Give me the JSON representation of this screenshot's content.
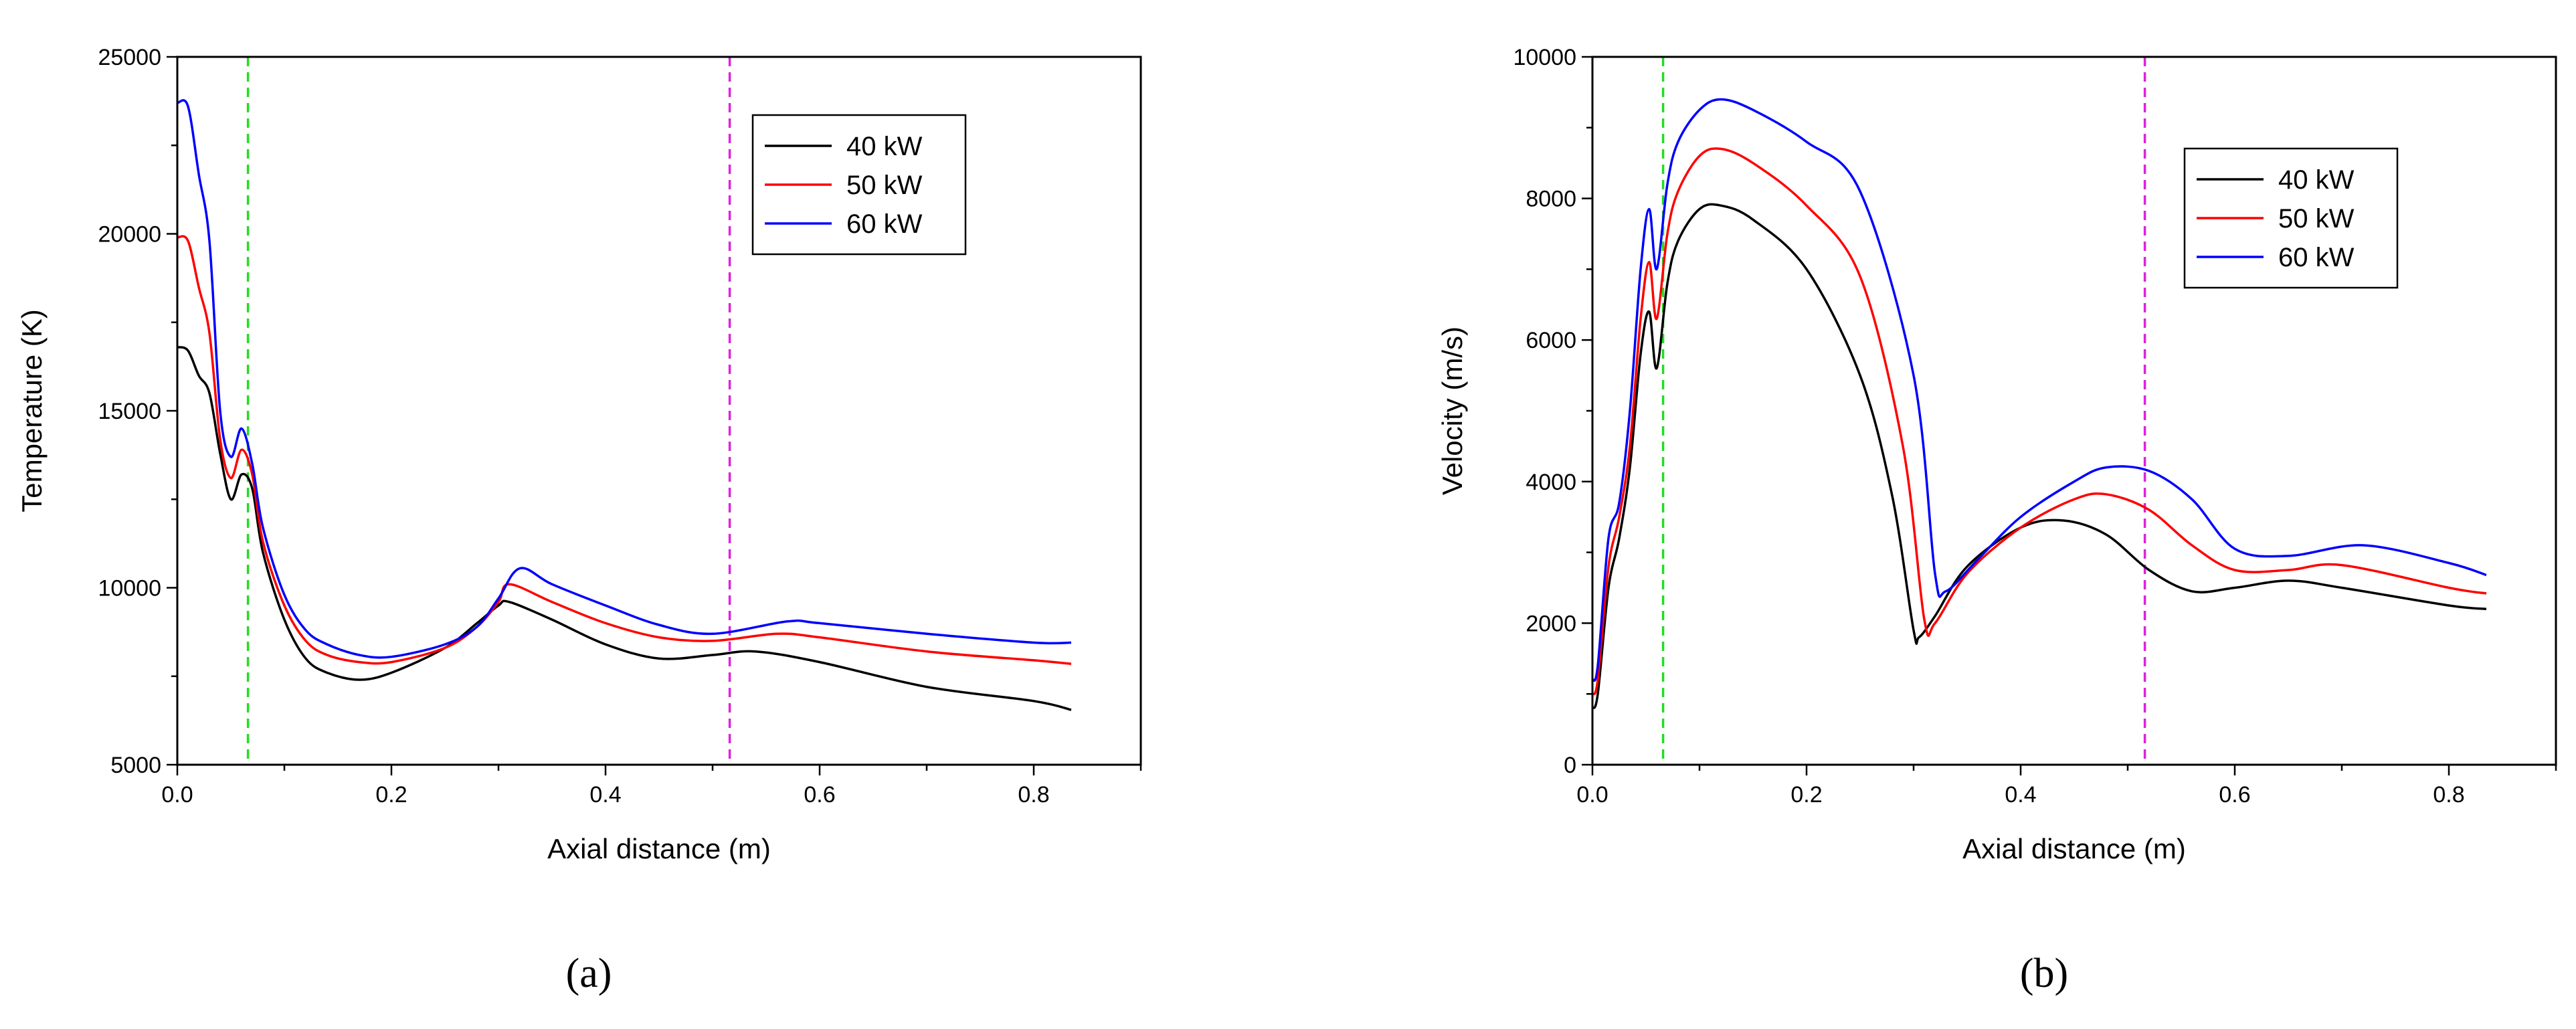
{
  "chart_data": [
    {
      "type": "line",
      "caption": "(a)",
      "xlabel": "Axial distance (m)",
      "ylabel": "Temperature (K)",
      "xlim": [
        0,
        0.9
      ],
      "ylim": [
        5000,
        25000
      ],
      "xticks": [
        0.0,
        0.2,
        0.4,
        0.6,
        0.8
      ],
      "xtick_labels": [
        "0.0",
        "0.2",
        "0.4",
        "0.6",
        "0.8"
      ],
      "yticks": [
        5000,
        10000,
        15000,
        20000,
        25000
      ],
      "ytick_labels": [
        "5000",
        "10000",
        "15000",
        "20000",
        "25000"
      ],
      "vlines": [
        {
          "x": 0.066,
          "color": "#22dd22"
        },
        {
          "x": 0.516,
          "color": "#dd22dd"
        }
      ],
      "legend_position": "top-right",
      "series": [
        {
          "name": "40 kW",
          "color": "#000000",
          "x": [
            0,
            0.01,
            0.02,
            0.03,
            0.04,
            0.05,
            0.06,
            0.07,
            0.08,
            0.1,
            0.12,
            0.14,
            0.17,
            0.2,
            0.25,
            0.28,
            0.3,
            0.31,
            0.35,
            0.4,
            0.45,
            0.5,
            0.54,
            0.6,
            0.7,
            0.8,
            0.835
          ],
          "y": [
            16800,
            16700,
            16000,
            15500,
            13800,
            12500,
            13200,
            12800,
            11000,
            9100,
            8000,
            7600,
            7400,
            7600,
            8300,
            9000,
            9500,
            9600,
            9100,
            8400,
            8000,
            8100,
            8200,
            7900,
            7200,
            6800,
            6550
          ]
        },
        {
          "name": "50 kW",
          "color": "#ff0000",
          "x": [
            0,
            0.01,
            0.02,
            0.03,
            0.04,
            0.05,
            0.06,
            0.07,
            0.08,
            0.1,
            0.12,
            0.14,
            0.17,
            0.2,
            0.25,
            0.28,
            0.3,
            0.31,
            0.35,
            0.4,
            0.45,
            0.5,
            0.56,
            0.6,
            0.7,
            0.8,
            0.835
          ],
          "y": [
            19900,
            19800,
            18500,
            17200,
            14200,
            13100,
            13900,
            13200,
            11300,
            9500,
            8500,
            8100,
            7900,
            7900,
            8300,
            8900,
            9600,
            10100,
            9600,
            9000,
            8600,
            8500,
            8700,
            8600,
            8200,
            7950,
            7850
          ]
        },
        {
          "name": "60 kW",
          "color": "#0000ff",
          "x": [
            0,
            0.01,
            0.02,
            0.03,
            0.04,
            0.05,
            0.06,
            0.07,
            0.08,
            0.1,
            0.12,
            0.14,
            0.17,
            0.2,
            0.25,
            0.28,
            0.3,
            0.32,
            0.35,
            0.4,
            0.45,
            0.5,
            0.57,
            0.6,
            0.7,
            0.8,
            0.835
          ],
          "y": [
            23700,
            23600,
            21700,
            19800,
            15000,
            13700,
            14500,
            13500,
            11700,
            9800,
            8800,
            8400,
            8100,
            8050,
            8400,
            8900,
            9700,
            10550,
            10100,
            9500,
            8950,
            8700,
            9050,
            9000,
            8700,
            8450,
            8450
          ]
        }
      ]
    },
    {
      "type": "line",
      "caption": "(b)",
      "xlabel": "Axial distance (m)",
      "ylabel": "Velocity (m/s)",
      "xlim": [
        0,
        0.9
      ],
      "ylim": [
        0,
        10000
      ],
      "xticks": [
        0.0,
        0.2,
        0.4,
        0.6,
        0.8
      ],
      "xtick_labels": [
        "0.0",
        "0.2",
        "0.4",
        "0.6",
        "0.8"
      ],
      "yticks": [
        0,
        2000,
        4000,
        6000,
        8000,
        10000
      ],
      "ytick_labels": [
        "0",
        "2000",
        "4000",
        "6000",
        "8000",
        "10000"
      ],
      "vlines": [
        {
          "x": 0.066,
          "color": "#22dd22"
        },
        {
          "x": 0.516,
          "color": "#dd22dd"
        }
      ],
      "legend_position": "top-right",
      "series": [
        {
          "name": "40 kW",
          "color": "#000000",
          "x": [
            0,
            0.005,
            0.015,
            0.025,
            0.035,
            0.045,
            0.053,
            0.06,
            0.07,
            0.08,
            0.1,
            0.12,
            0.15,
            0.2,
            0.25,
            0.28,
            0.3,
            0.305,
            0.32,
            0.35,
            0.4,
            0.44,
            0.48,
            0.52,
            0.56,
            0.6,
            0.65,
            0.7,
            0.8,
            0.835
          ],
          "y": [
            800,
            1000,
            2500,
            3200,
            4200,
            5800,
            6400,
            5600,
            6800,
            7400,
            7850,
            7900,
            7700,
            7000,
            5500,
            3800,
            1900,
            1800,
            2100,
            2800,
            3350,
            3450,
            3250,
            2750,
            2450,
            2500,
            2600,
            2500,
            2250,
            2200
          ]
        },
        {
          "name": "50 kW",
          "color": "#ff0000",
          "x": [
            0,
            0.005,
            0.015,
            0.025,
            0.035,
            0.045,
            0.053,
            0.06,
            0.07,
            0.08,
            0.1,
            0.12,
            0.15,
            0.2,
            0.25,
            0.29,
            0.31,
            0.32,
            0.35,
            0.4,
            0.45,
            0.48,
            0.52,
            0.56,
            0.6,
            0.65,
            0.7,
            0.8,
            0.835
          ],
          "y": [
            1000,
            1200,
            2800,
            3500,
            4500,
            6300,
            7100,
            6300,
            7500,
            8100,
            8600,
            8700,
            8500,
            7900,
            6900,
            4500,
            2050,
            2000,
            2700,
            3350,
            3750,
            3820,
            3600,
            3100,
            2750,
            2750,
            2820,
            2500,
            2420
          ]
        },
        {
          "name": "60 kW",
          "color": "#0000ff",
          "x": [
            0,
            0.005,
            0.015,
            0.025,
            0.035,
            0.045,
            0.053,
            0.06,
            0.07,
            0.08,
            0.1,
            0.12,
            0.15,
            0.2,
            0.25,
            0.3,
            0.32,
            0.33,
            0.36,
            0.4,
            0.45,
            0.48,
            0.52,
            0.56,
            0.6,
            0.65,
            0.72,
            0.8,
            0.835
          ],
          "y": [
            1200,
            1400,
            3200,
            3700,
            5000,
            7000,
            7850,
            7000,
            8200,
            8800,
            9250,
            9400,
            9250,
            8800,
            8100,
            5500,
            2700,
            2450,
            2900,
            3500,
            4000,
            4200,
            4150,
            3750,
            3050,
            2950,
            3100,
            2850,
            2680
          ]
        }
      ]
    }
  ]
}
